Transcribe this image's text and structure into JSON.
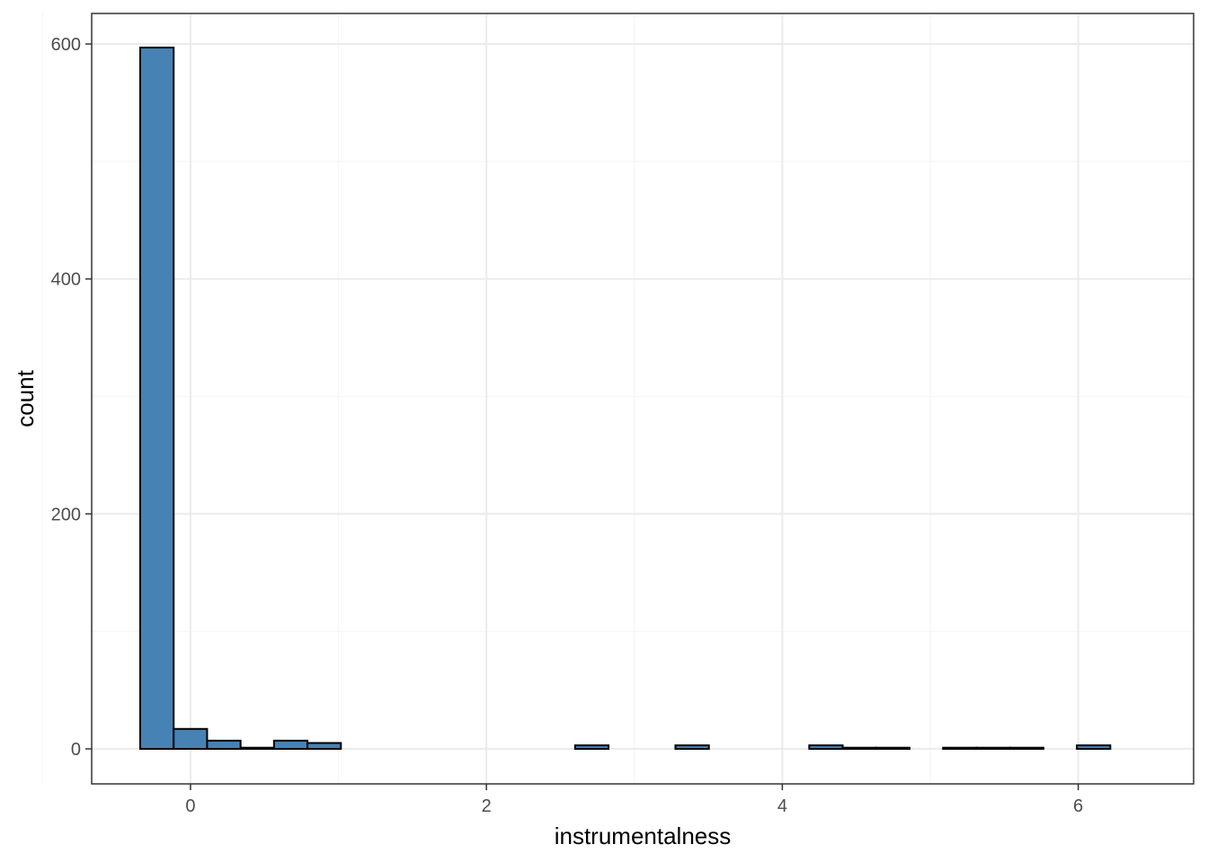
{
  "chart_data": {
    "type": "histogram",
    "title": "",
    "xlabel": "instrumentalness",
    "ylabel": "count",
    "xlim": [
      -0.668,
      6.78
    ],
    "ylim": [
      -29.8,
      626
    ],
    "x_ticks": [
      0,
      2,
      4,
      6
    ],
    "x_tick_labels": [
      "0",
      "2",
      "4",
      "6"
    ],
    "y_ticks": [
      0,
      200,
      400,
      600
    ],
    "y_tick_labels": [
      "0",
      "200",
      "400",
      "600"
    ],
    "y_minor_ticks": [
      100,
      300,
      500
    ],
    "x_minor_ticks": [
      -1,
      1,
      3,
      5
    ],
    "grid": true,
    "bins": {
      "start": -0.34,
      "width": 0.2261,
      "counts": [
        597,
        17,
        7,
        1,
        7,
        5,
        0,
        0,
        0,
        0,
        0,
        0,
        0,
        3,
        0,
        0,
        3,
        0,
        0,
        0,
        3,
        1,
        1,
        0,
        1,
        1,
        1,
        0,
        3,
        0
      ]
    },
    "colors": {
      "bar_fill": "#4682B4",
      "bar_stroke": "#000000",
      "grid_major": "#ebebeb",
      "grid_minor": "#f5f5f5",
      "panel_border": "#333333",
      "axis_tick": "#333333"
    }
  }
}
